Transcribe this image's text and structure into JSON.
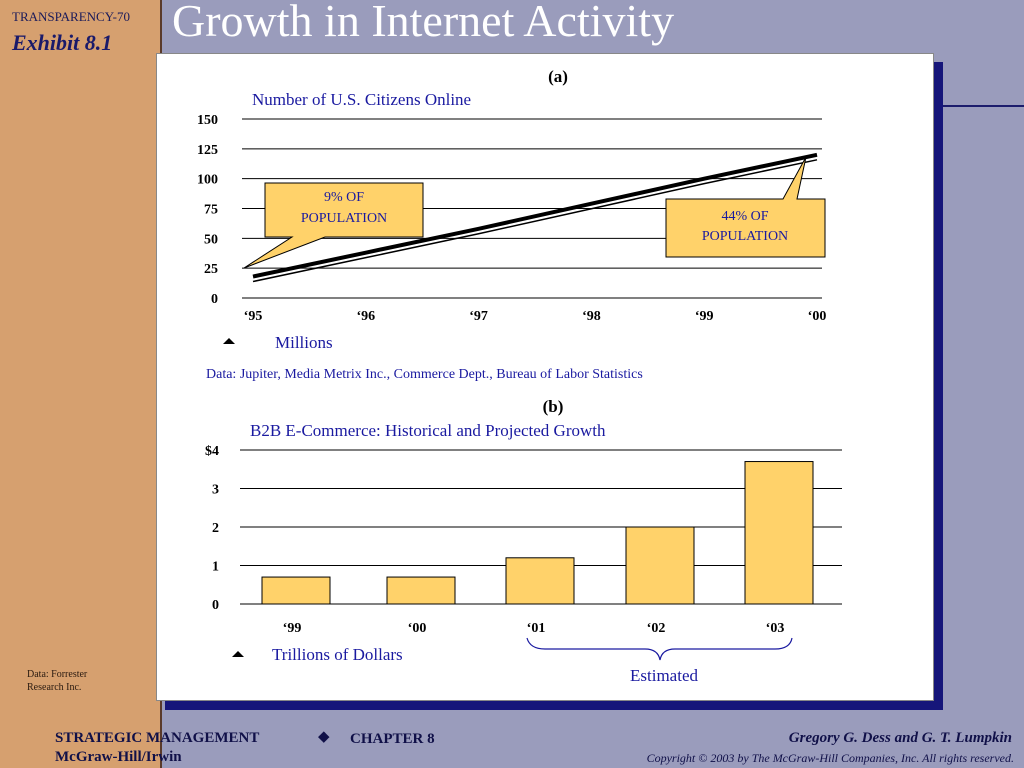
{
  "header": {
    "transparency": "TRANSPARENCY-70",
    "exhibit": "Exhibit 8.1",
    "title": "Growth in Internet Activity"
  },
  "chart_a": {
    "label": "(a)",
    "title": "Number of U.S. Citizens Online",
    "unit_note": "Millions",
    "source": "Data: Jupiter, Media Metrix Inc., Commerce Dept., Bureau of Labor Statistics",
    "callout_start": [
      "9% OF",
      "POPULATION"
    ],
    "callout_end": [
      "44% OF",
      "POPULATION"
    ]
  },
  "chart_b": {
    "label": "(b)",
    "title": "B2B E-Commerce: Historical and Projected Growth",
    "unit_note": "Trillions of Dollars",
    "estimated_label": "Estimated"
  },
  "source_note": [
    "Data: Forrester",
    "Research Inc."
  ],
  "footer": {
    "course": "STRATEGIC MANAGEMENT",
    "publisher": "McGraw-Hill/Irwin",
    "chapter": "CHAPTER 8",
    "authors": "Gregory G. Dess and G. T. Lumpkin",
    "copyright": "Copyright © 2003 by The McGraw-Hill Companies, Inc.  All rights reserved."
  },
  "colors": {
    "bar_fill": "#ffd26a",
    "chart_text": "#1a1aa0",
    "panel_shadow": "#16167a",
    "sidebar": "#d6a06f",
    "background": "#9a9cbc"
  },
  "chart_data": [
    {
      "type": "line",
      "x": [
        "‘95",
        "‘96",
        "‘97",
        "‘98",
        "‘99",
        "‘00"
      ],
      "yticks": [
        "0",
        "25",
        "50",
        "75",
        "100",
        "125",
        "150"
      ],
      "ylim": [
        0,
        150
      ],
      "grid": true,
      "series": [
        {
          "values": [
            18,
            38,
            58,
            79,
            100,
            120
          ]
        }
      ]
    },
    {
      "type": "bar",
      "categories": [
        "‘99",
        "‘00",
        "‘01",
        "‘02",
        "‘03"
      ],
      "yticks": [
        "0",
        "1",
        "2",
        "3",
        "$4"
      ],
      "ylim": [
        0,
        4
      ],
      "grid": true,
      "values": [
        0.7,
        0.7,
        1.2,
        2.0,
        3.7
      ]
    }
  ]
}
